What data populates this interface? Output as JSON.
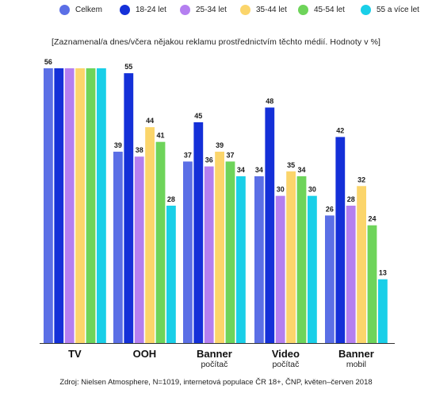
{
  "chart_data": {
    "type": "bar",
    "title": "",
    "subtitle": "[Zaznamenal/a dnes/včera nějakou reklamu prostřednictvím těchto médií. Hodnoty v %]",
    "categories": [
      "TV",
      "OOH",
      "Banner",
      "Video",
      "Banner"
    ],
    "category_sublabels": [
      "",
      "",
      "počítač",
      "počítač",
      "mobil"
    ],
    "ylim": [
      0,
      60
    ],
    "grid": false,
    "legend_position": "top",
    "series": [
      {
        "name": "Celkem",
        "color": "#5b6fe6",
        "values": [
          56,
          39,
          37,
          34,
          26
        ]
      },
      {
        "name": "18-24 let",
        "color": "#1430d8",
        "values": [
          56,
          55,
          45,
          48,
          42
        ]
      },
      {
        "name": "25-34 let",
        "color": "#b47ff0",
        "values": [
          56,
          38,
          36,
          30,
          28
        ]
      },
      {
        "name": "35-44 let",
        "color": "#fbd56b",
        "values": [
          56,
          44,
          39,
          35,
          32
        ]
      },
      {
        "name": "45-54 let",
        "color": "#6ed45a",
        "values": [
          56,
          41,
          37,
          34,
          24
        ]
      },
      {
        "name": "55 a více let",
        "color": "#19cfe8",
        "values": [
          56,
          28,
          34,
          30,
          13
        ]
      }
    ],
    "data_labels_tv": "56"
  },
  "source": "Zdroj: Nielsen Atmosphere, N=1019, internetová populace ČR 18+, ČNP, květen–červen 2018"
}
